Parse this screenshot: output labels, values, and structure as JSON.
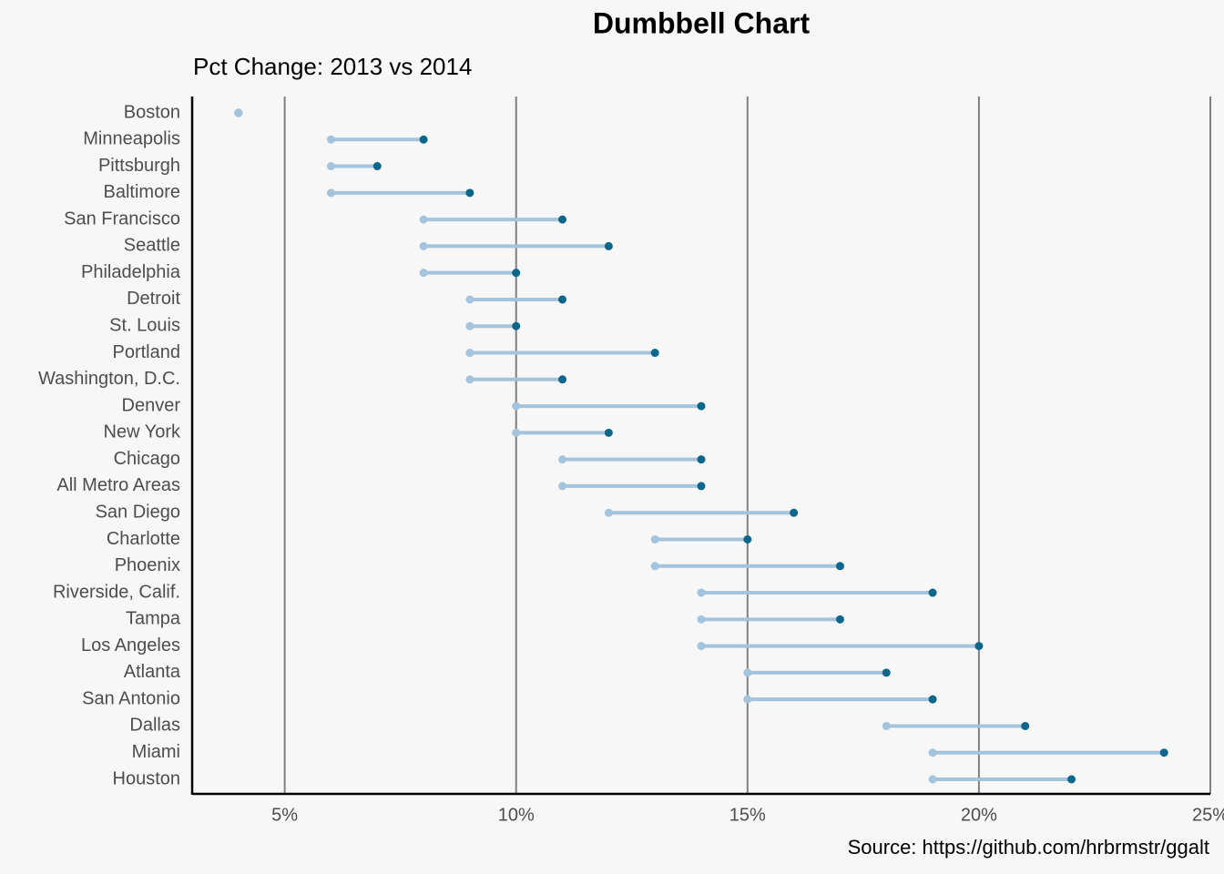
{
  "chart_data": {
    "type": "dumbbell",
    "title": "Dumbbell Chart",
    "subtitle": "Pct Change: 2013 vs 2014",
    "caption": "Source: https://github.com/hrbrmstr/ggalt",
    "categories": [
      "Boston",
      "Minneapolis",
      "Pittsburgh",
      "Baltimore",
      "San Francisco",
      "Seattle",
      "Philadelphia",
      "Detroit",
      "St. Louis",
      "Portland",
      "Washington, D.C.",
      "Denver",
      "New York",
      "Chicago",
      "All Metro Areas",
      "San Diego",
      "Charlotte",
      "Phoenix",
      "Riverside, Calif.",
      "Tampa",
      "Los Angeles",
      "Atlanta",
      "San Antonio",
      "Dallas",
      "Miami",
      "Houston"
    ],
    "series": [
      {
        "color": "#a3c4dc",
        "values": [
          4,
          6,
          6,
          6,
          8,
          8,
          8,
          9,
          9,
          9,
          9,
          10,
          10,
          11,
          11,
          12,
          13,
          13,
          14,
          14,
          14,
          15,
          15,
          18,
          19,
          19
        ]
      },
      {
        "color": "#0e668b",
        "values": [
          4,
          8,
          7,
          9,
          11,
          12,
          10,
          11,
          10,
          13,
          11,
          14,
          12,
          14,
          14,
          16,
          15,
          17,
          19,
          17,
          20,
          18,
          19,
          21,
          24,
          22
        ]
      }
    ],
    "xlim": [
      3,
      25
    ],
    "xticks": [
      {
        "value": 5,
        "label": "5%"
      },
      {
        "value": 10,
        "label": "10%"
      },
      {
        "value": 15,
        "label": "15%"
      },
      {
        "value": 20,
        "label": "20%"
      },
      {
        "value": 25,
        "label": "25%"
      }
    ],
    "grid": true
  }
}
